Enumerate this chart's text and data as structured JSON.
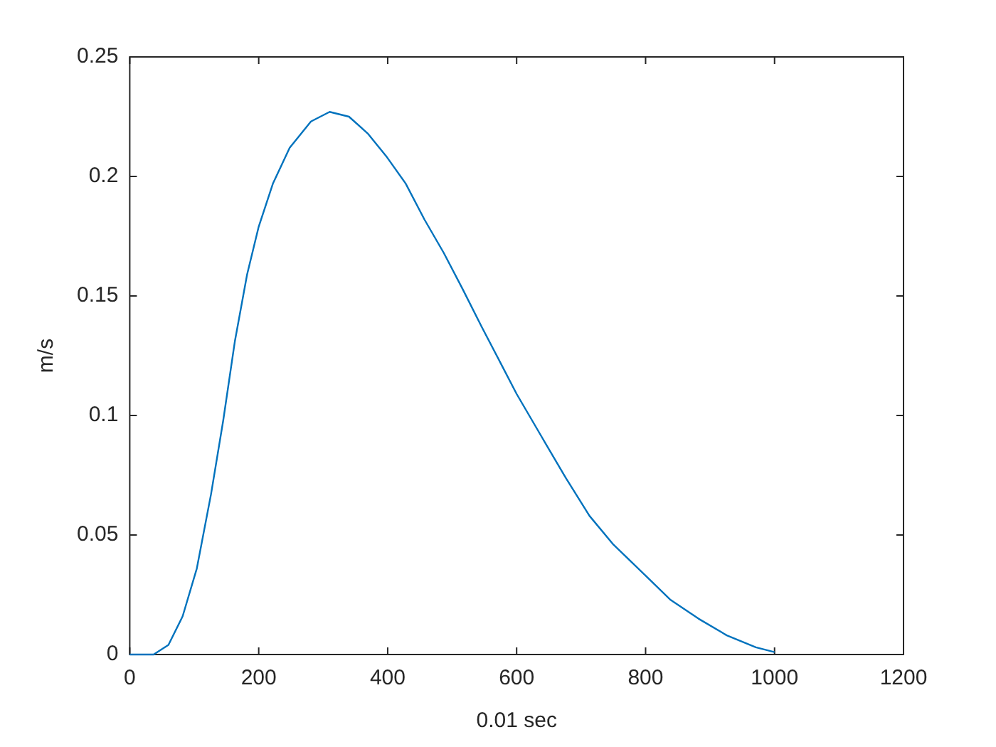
{
  "chart_data": {
    "type": "line",
    "xlabel": "0.01 sec",
    "ylabel": "m/s",
    "xlim": [
      0,
      1200
    ],
    "ylim": [
      0,
      0.25
    ],
    "xticks": [
      0,
      200,
      400,
      600,
      800,
      1000,
      1200
    ],
    "yticks": [
      0,
      0.05,
      0.1,
      0.15,
      0.2,
      0.25
    ],
    "grid": false,
    "legend": false,
    "marker": "none",
    "line_style": "solid",
    "series": [
      {
        "color": "#0072bd",
        "x": [
          0,
          37,
          60,
          82,
          104,
          126,
          145,
          163,
          182,
          200,
          222,
          248,
          281,
          310,
          340,
          369,
          399,
          428,
          457,
          487,
          516,
          546,
          575,
          600,
          639,
          676,
          713,
          750,
          800,
          838,
          882,
          926,
          971,
          1000
        ],
        "values": [
          0,
          0,
          0.004,
          0.016,
          0.036,
          0.067,
          0.098,
          0.131,
          0.159,
          0.179,
          0.197,
          0.212,
          0.223,
          0.227,
          0.225,
          0.218,
          0.208,
          0.197,
          0.182,
          0.168,
          0.153,
          0.137,
          0.122,
          0.109,
          0.091,
          0.074,
          0.058,
          0.046,
          0.033,
          0.023,
          0.015,
          0.008,
          0.003,
          0.001
        ]
      }
    ]
  }
}
